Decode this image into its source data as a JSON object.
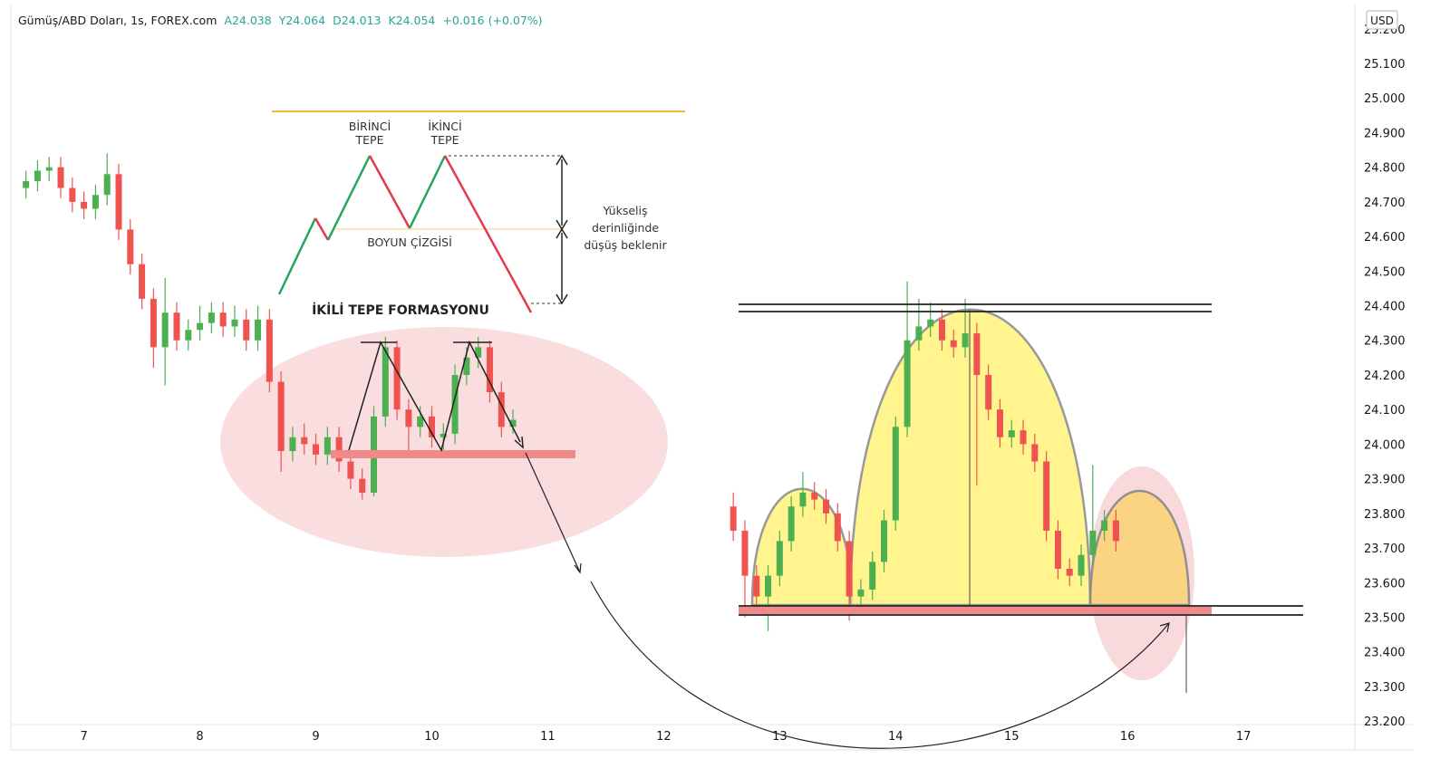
{
  "chart_data": {
    "type": "candlestick",
    "header": {
      "symbol": "Gümüş/ABD Doları, 1s, FOREX.com",
      "open": "A24.038",
      "high": "Y24.064",
      "low": "D24.013",
      "close": "K24.054",
      "change": "+0.016 (+0.07%)"
    },
    "currency": "USD",
    "annotations": {
      "first_top": [
        "BİRİNCİ",
        "TEPE"
      ],
      "second_top": [
        "İKİNCİ",
        "TEPE"
      ],
      "neckline": "BOYUN ÇİZGİSİ",
      "expectation": [
        "Yükseliş",
        "derinliğinde",
        "düşüş beklenir"
      ],
      "pattern": "İKİLİ TEPE FORMASYONU"
    },
    "up_color": "#4caf50",
    "down_color": "#ef5350",
    "xlim": [
      6.37,
      17.96
    ],
    "xticks": [
      7,
      8,
      9,
      10,
      11,
      12,
      13,
      14,
      15,
      16,
      17
    ],
    "ylim": [
      23.19,
      25.27
    ],
    "yticks": [
      {
        "value": 23.2,
        "label": "23.200"
      },
      {
        "value": 23.3,
        "label": "23.300"
      },
      {
        "value": 23.4,
        "label": "23.400"
      },
      {
        "value": 23.5,
        "label": "23.500"
      },
      {
        "value": 23.6,
        "label": "23.600"
      },
      {
        "value": 23.7,
        "label": "23.700"
      },
      {
        "value": 23.8,
        "label": "23.800"
      },
      {
        "value": 23.9,
        "label": "23.900"
      },
      {
        "value": 24.0,
        "label": "24.000"
      },
      {
        "value": 24.1,
        "label": "24.100"
      },
      {
        "value": 24.2,
        "label": "24.200"
      },
      {
        "value": 24.3,
        "label": "24.300"
      },
      {
        "value": 24.4,
        "label": "24.400"
      },
      {
        "value": 24.5,
        "label": "24.500"
      },
      {
        "value": 24.6,
        "label": "24.600"
      },
      {
        "value": 24.7,
        "label": "24.700"
      },
      {
        "value": 24.8,
        "label": "24.800"
      },
      {
        "value": 24.9,
        "label": "24.900"
      },
      {
        "value": 25.0,
        "label": "25.000"
      },
      {
        "value": 25.1,
        "label": "25.100"
      },
      {
        "value": 25.2,
        "label": "25.200"
      }
    ],
    "x": [
      6.5,
      6.6,
      6.7,
      6.8,
      6.9,
      7.0,
      7.1,
      7.2,
      7.3,
      7.4,
      7.5,
      7.6,
      7.7,
      7.8,
      7.9,
      8.0,
      8.1,
      8.2,
      8.3,
      8.4,
      8.5,
      8.6,
      8.7,
      8.8,
      8.9,
      9.0,
      9.1,
      9.2,
      9.3,
      9.4,
      9.5,
      9.6,
      9.7,
      9.8,
      9.9,
      10.0,
      10.1,
      10.2,
      10.3,
      10.4,
      10.5,
      10.6,
      10.7,
      12.6,
      12.7,
      12.8,
      12.9,
      13.0,
      13.1,
      13.2,
      13.3,
      13.4,
      13.5,
      13.6,
      13.7,
      13.8,
      13.9,
      14.0,
      14.1,
      14.2,
      14.3,
      14.4,
      14.5,
      14.6,
      14.7,
      14.8,
      14.9,
      15.0,
      15.1,
      15.2,
      15.3,
      15.4,
      15.5,
      15.6,
      15.7,
      15.8,
      15.9
    ],
    "ohlc": [
      [
        24.74,
        24.79,
        24.71,
        24.76
      ],
      [
        24.76,
        24.82,
        24.73,
        24.79
      ],
      [
        24.79,
        24.83,
        24.76,
        24.8
      ],
      [
        24.8,
        24.83,
        24.71,
        24.74
      ],
      [
        24.74,
        24.77,
        24.67,
        24.7
      ],
      [
        24.7,
        24.73,
        24.65,
        24.68
      ],
      [
        24.68,
        24.75,
        24.65,
        24.72
      ],
      [
        24.72,
        24.84,
        24.69,
        24.78
      ],
      [
        24.78,
        24.81,
        24.59,
        24.62
      ],
      [
        24.62,
        24.65,
        24.49,
        24.52
      ],
      [
        24.52,
        24.55,
        24.39,
        24.42
      ],
      [
        24.42,
        24.45,
        24.22,
        24.28
      ],
      [
        24.28,
        24.48,
        24.17,
        24.38
      ],
      [
        24.38,
        24.41,
        24.27,
        24.3
      ],
      [
        24.3,
        24.36,
        24.27,
        24.33
      ],
      [
        24.33,
        24.4,
        24.3,
        24.35
      ],
      [
        24.35,
        24.41,
        24.32,
        24.38
      ],
      [
        24.38,
        24.41,
        24.31,
        24.34
      ],
      [
        24.34,
        24.4,
        24.31,
        24.36
      ],
      [
        24.36,
        24.39,
        24.27,
        24.3
      ],
      [
        24.3,
        24.4,
        24.27,
        24.36
      ],
      [
        24.36,
        24.39,
        24.15,
        24.18
      ],
      [
        24.18,
        24.21,
        23.92,
        23.98
      ],
      [
        23.98,
        24.05,
        23.95,
        24.02
      ],
      [
        24.02,
        24.06,
        23.97,
        24.0
      ],
      [
        24.0,
        24.03,
        23.94,
        23.97
      ],
      [
        23.97,
        24.05,
        23.94,
        24.02
      ],
      [
        24.02,
        24.05,
        23.92,
        23.95
      ],
      [
        23.95,
        23.98,
        23.87,
        23.9
      ],
      [
        23.9,
        23.93,
        23.84,
        23.86
      ],
      [
        23.86,
        24.11,
        23.85,
        24.08
      ],
      [
        24.08,
        24.31,
        24.05,
        24.28
      ],
      [
        24.28,
        24.3,
        24.07,
        24.1
      ],
      [
        24.1,
        24.13,
        23.97,
        24.05
      ],
      [
        24.05,
        24.11,
        24.02,
        24.08
      ],
      [
        24.08,
        24.11,
        23.99,
        24.02
      ],
      [
        24.02,
        24.06,
        23.98,
        24.03
      ],
      [
        24.03,
        24.23,
        24.0,
        24.2
      ],
      [
        24.2,
        24.28,
        24.17,
        24.25
      ],
      [
        24.25,
        24.31,
        24.22,
        24.28
      ],
      [
        24.28,
        24.3,
        24.12,
        24.15
      ],
      [
        24.15,
        24.18,
        24.02,
        24.05
      ],
      [
        24.05,
        24.1,
        24.03,
        24.07
      ],
      [
        23.82,
        23.86,
        23.72,
        23.75
      ],
      [
        23.75,
        23.78,
        23.5,
        23.62
      ],
      [
        23.62,
        23.65,
        23.53,
        23.56
      ],
      [
        23.56,
        23.65,
        23.46,
        23.62
      ],
      [
        23.62,
        23.75,
        23.59,
        23.72
      ],
      [
        23.72,
        23.85,
        23.69,
        23.82
      ],
      [
        23.82,
        23.92,
        23.79,
        23.86
      ],
      [
        23.86,
        23.89,
        23.81,
        23.84
      ],
      [
        23.84,
        23.87,
        23.77,
        23.8
      ],
      [
        23.8,
        23.83,
        23.69,
        23.72
      ],
      [
        23.72,
        23.75,
        23.49,
        23.56
      ],
      [
        23.56,
        23.61,
        23.53,
        23.58
      ],
      [
        23.58,
        23.69,
        23.55,
        23.66
      ],
      [
        23.66,
        23.81,
        23.63,
        23.78
      ],
      [
        23.78,
        24.08,
        23.75,
        24.05
      ],
      [
        24.05,
        24.47,
        24.02,
        24.3
      ],
      [
        24.3,
        24.42,
        24.27,
        24.34
      ],
      [
        24.34,
        24.41,
        24.31,
        24.36
      ],
      [
        24.36,
        24.39,
        24.27,
        24.3
      ],
      [
        24.3,
        24.33,
        24.25,
        24.28
      ],
      [
        24.28,
        24.42,
        24.25,
        24.32
      ],
      [
        24.32,
        24.35,
        23.88,
        24.2
      ],
      [
        24.2,
        24.23,
        24.07,
        24.1
      ],
      [
        24.1,
        24.13,
        23.99,
        24.02
      ],
      [
        24.02,
        24.07,
        23.99,
        24.04
      ],
      [
        24.04,
        24.07,
        23.97,
        24.0
      ],
      [
        24.0,
        24.03,
        23.92,
        23.95
      ],
      [
        23.95,
        23.98,
        23.72,
        23.75
      ],
      [
        23.75,
        23.78,
        23.61,
        23.64
      ],
      [
        23.64,
        23.67,
        23.59,
        23.62
      ],
      [
        23.62,
        23.71,
        23.59,
        23.68
      ],
      [
        23.68,
        23.94,
        23.65,
        23.75
      ],
      [
        23.75,
        23.81,
        23.72,
        23.78
      ],
      [
        23.78,
        23.81,
        23.69,
        23.72
      ]
    ]
  }
}
